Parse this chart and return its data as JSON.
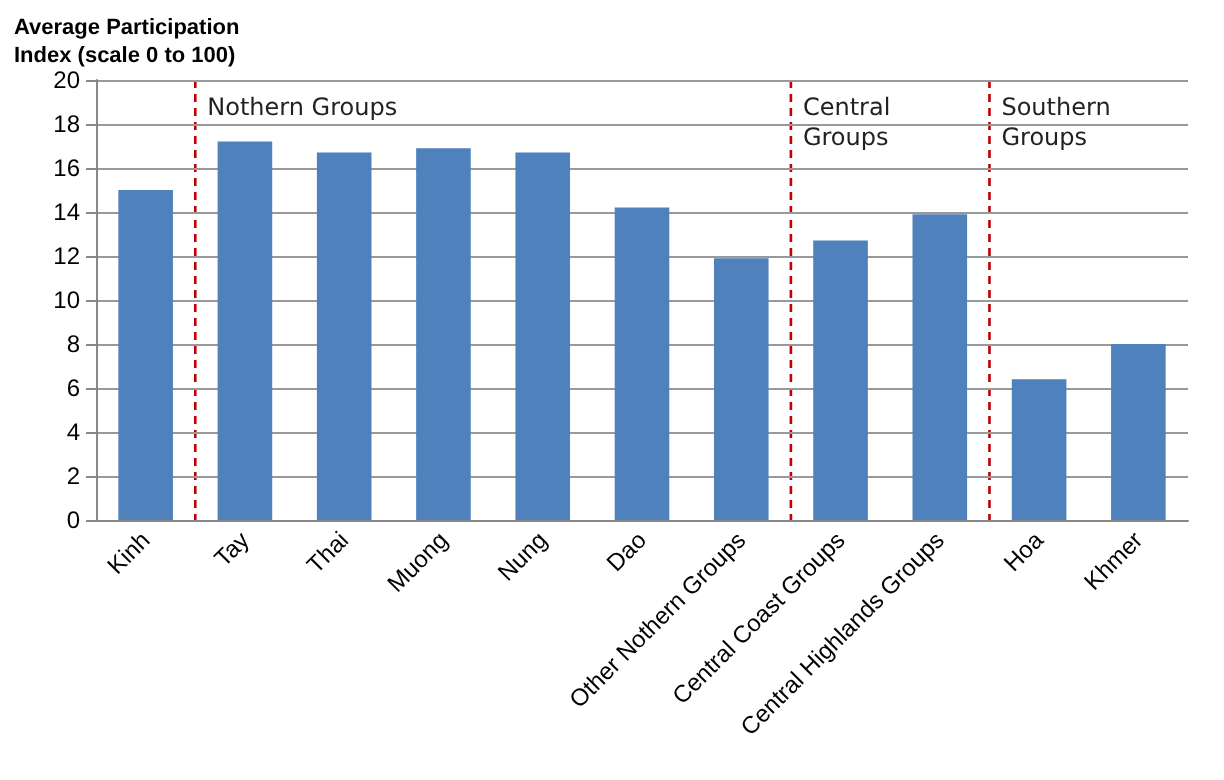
{
  "chart_data": {
    "type": "bar",
    "title": "Average Participation Index (scale 0 to 100)",
    "categories": [
      "Kinh",
      "Tay",
      "Thai",
      "Muong",
      "Nung",
      "Dao",
      "Other Nothern Groups",
      "Central Coast Groups",
      "Central Highlands Groups",
      "Hoa",
      "Khmer"
    ],
    "values": [
      15.0,
      17.2,
      16.7,
      16.9,
      16.7,
      14.2,
      11.9,
      12.7,
      13.9,
      6.4,
      8.0
    ],
    "color": "#4f81bd",
    "ylim": [
      0,
      20
    ],
    "yticks": [
      0,
      2,
      4,
      6,
      8,
      10,
      12,
      14,
      16,
      18,
      20
    ],
    "grid": "y",
    "annotations": [
      "Nothern Groups",
      "Central Groups",
      "Southern Groups"
    ]
  }
}
